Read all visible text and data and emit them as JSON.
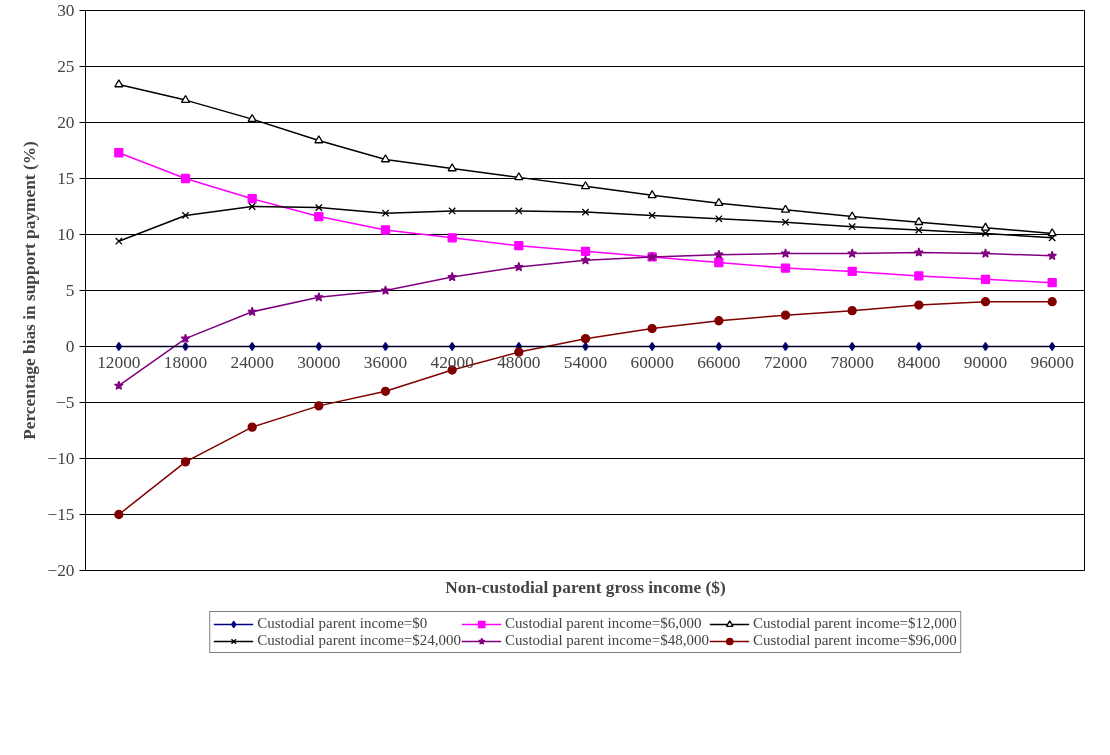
{
  "chart_data": {
    "type": "line",
    "xlabel": "Non-custodial parent gross income ($)",
    "ylabel": "Percentage bias in support payment (%)",
    "categories": [
      "12000",
      "18000",
      "24000",
      "30000",
      "36000",
      "42000",
      "48000",
      "54000",
      "60000",
      "66000",
      "72000",
      "78000",
      "84000",
      "90000",
      "96000"
    ],
    "ylim": [
      -20,
      30
    ],
    "yticks": [
      -20,
      -15,
      -10,
      -5,
      0,
      5,
      10,
      15,
      20,
      25,
      30
    ],
    "grid": "y",
    "legend": "bottom",
    "series": [
      {
        "name": "Custodial parent income=$0",
        "color": "#000080",
        "marker": "diamond",
        "values": [
          0,
          0,
          0,
          0,
          0,
          0,
          0,
          0,
          0,
          0,
          0,
          0,
          0,
          0,
          0
        ]
      },
      {
        "name": "Custodial parent income=$6,000",
        "color": "#ff00ff",
        "marker": "square",
        "values": [
          17.3,
          15.0,
          13.2,
          11.6,
          10.4,
          9.7,
          9.0,
          8.5,
          8.0,
          7.5,
          7.0,
          6.7,
          6.3,
          6.0,
          5.7
        ]
      },
      {
        "name": "Custodial parent income=$12,000",
        "color": "#000000",
        "marker": "triangle",
        "values": [
          23.4,
          22.0,
          20.3,
          18.4,
          16.7,
          15.9,
          15.1,
          14.3,
          13.5,
          12.8,
          12.2,
          11.6,
          11.1,
          10.6,
          10.1
        ]
      },
      {
        "name": "Custodial parent income=$24,000",
        "color": "#000000",
        "marker": "cross",
        "values": [
          9.4,
          11.7,
          12.5,
          12.4,
          11.9,
          12.1,
          12.1,
          12.0,
          11.7,
          11.4,
          11.1,
          10.7,
          10.4,
          10.1,
          9.7
        ]
      },
      {
        "name": "Custodial parent income=$48,000",
        "color": "#800080",
        "marker": "star",
        "values": [
          -3.5,
          0.7,
          3.1,
          4.4,
          5.0,
          6.2,
          7.1,
          7.7,
          8.0,
          8.2,
          8.3,
          8.3,
          8.4,
          8.3,
          8.1
        ]
      },
      {
        "name": "Custodial parent income=$96,000",
        "color": "#800000",
        "marker": "circle",
        "values": [
          -15.0,
          -10.3,
          -7.2,
          -5.3,
          -4.0,
          -2.1,
          -0.5,
          0.7,
          1.6,
          2.3,
          2.8,
          3.2,
          3.7,
          4.0,
          4.0
        ]
      }
    ]
  }
}
